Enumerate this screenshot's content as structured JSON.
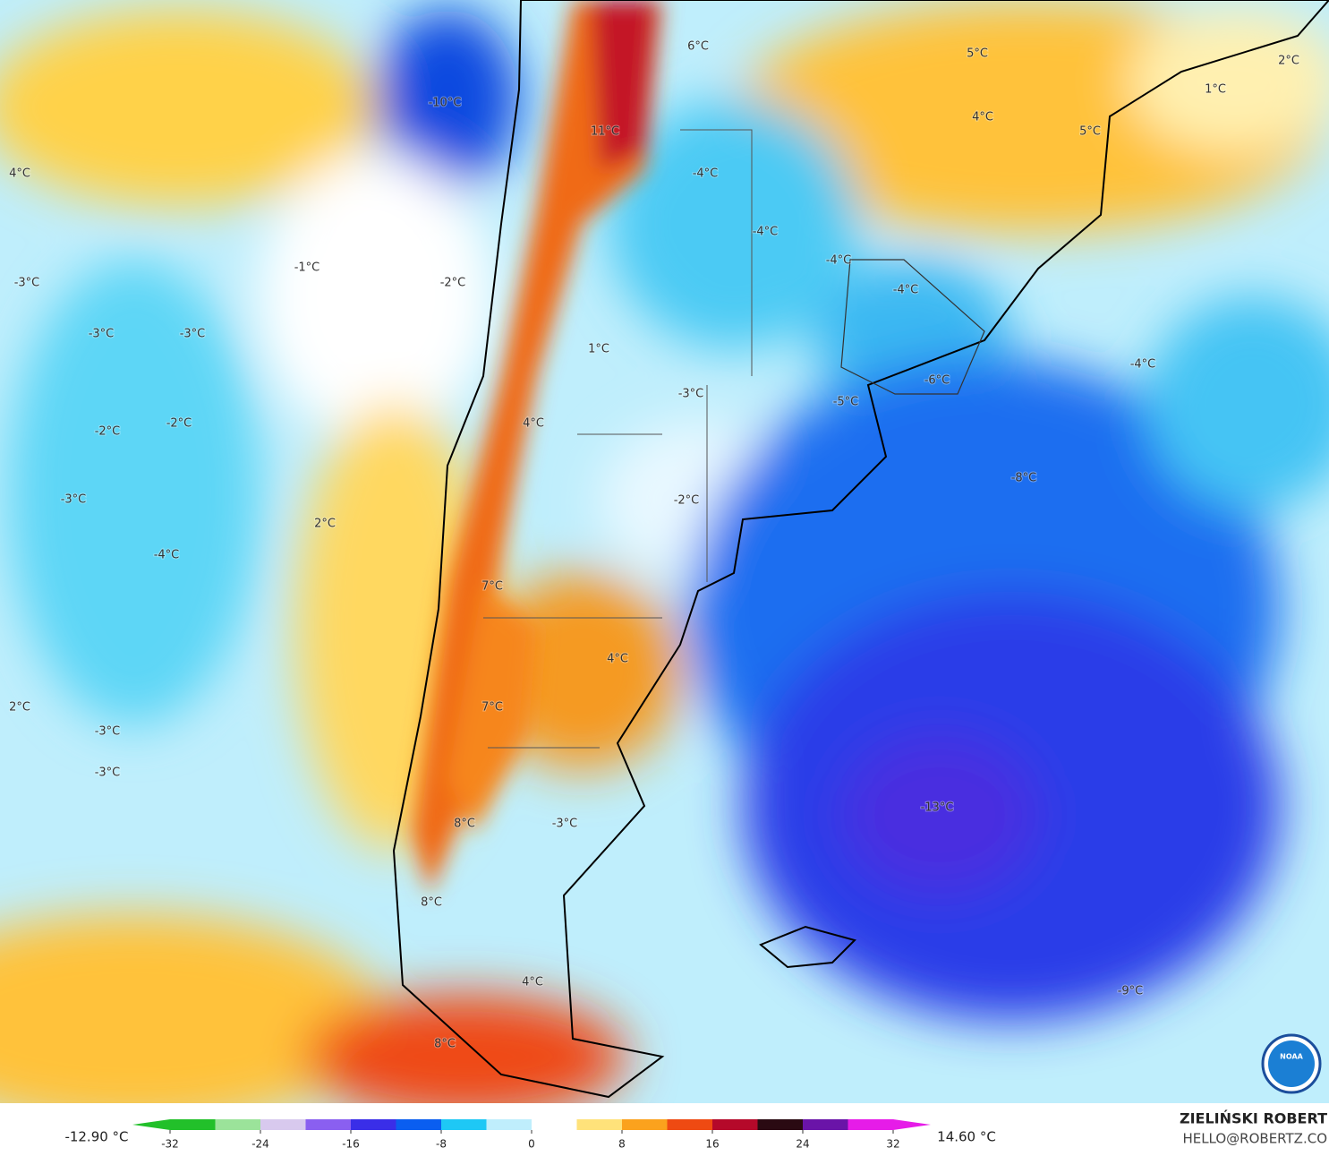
{
  "map": {
    "labels": [
      "-10°C",
      "6°C",
      "5°C",
      "2°C",
      "1°C",
      "4°C",
      "5°C",
      "11°C",
      "4°C",
      "-4°C",
      "-4°C",
      "-4°C",
      "-1°C",
      "-2°C",
      "-3°C",
      "-4°C",
      "-3°C",
      "-3°C",
      "1°C",
      "-4°C",
      "-3°C",
      "-5°C",
      "-6°C",
      "4°C",
      "-2°C",
      "-2°C",
      "-8°C",
      "-3°C",
      "-2°C",
      "2°C",
      "-4°C",
      "7°C",
      "4°C",
      "2°C",
      "7°C",
      "-3°C",
      "-3°C",
      "-13°C",
      "-3°C",
      "8°C",
      "8°C",
      "4°C",
      "-9°C",
      "8°C"
    ],
    "logo_text": "NOAA"
  },
  "colorbar": {
    "lim": [
      -32,
      32
    ],
    "ticks": [
      -32,
      -24,
      -16,
      -8,
      0,
      8,
      16,
      24,
      32
    ],
    "colors": [
      "#22c02a",
      "#9be39a",
      "#d8c9ee",
      "#8a5ff0",
      "#3a2ee8",
      "#0a5ef0",
      "#1ec8f5",
      "#bfeefc",
      "#ffffff",
      "#ffe27a",
      "#fba21d",
      "#ef4a12",
      "#b5092a",
      "#2a0a12",
      "#6a14a8",
      "#e61ce8"
    ],
    "min_label": "-12.90 °C",
    "max_label": "14.60 °C"
  },
  "credit": {
    "name": "ZIELIŃSKI ROBERT",
    "email": "HELLO@ROBERTZ.CO"
  }
}
